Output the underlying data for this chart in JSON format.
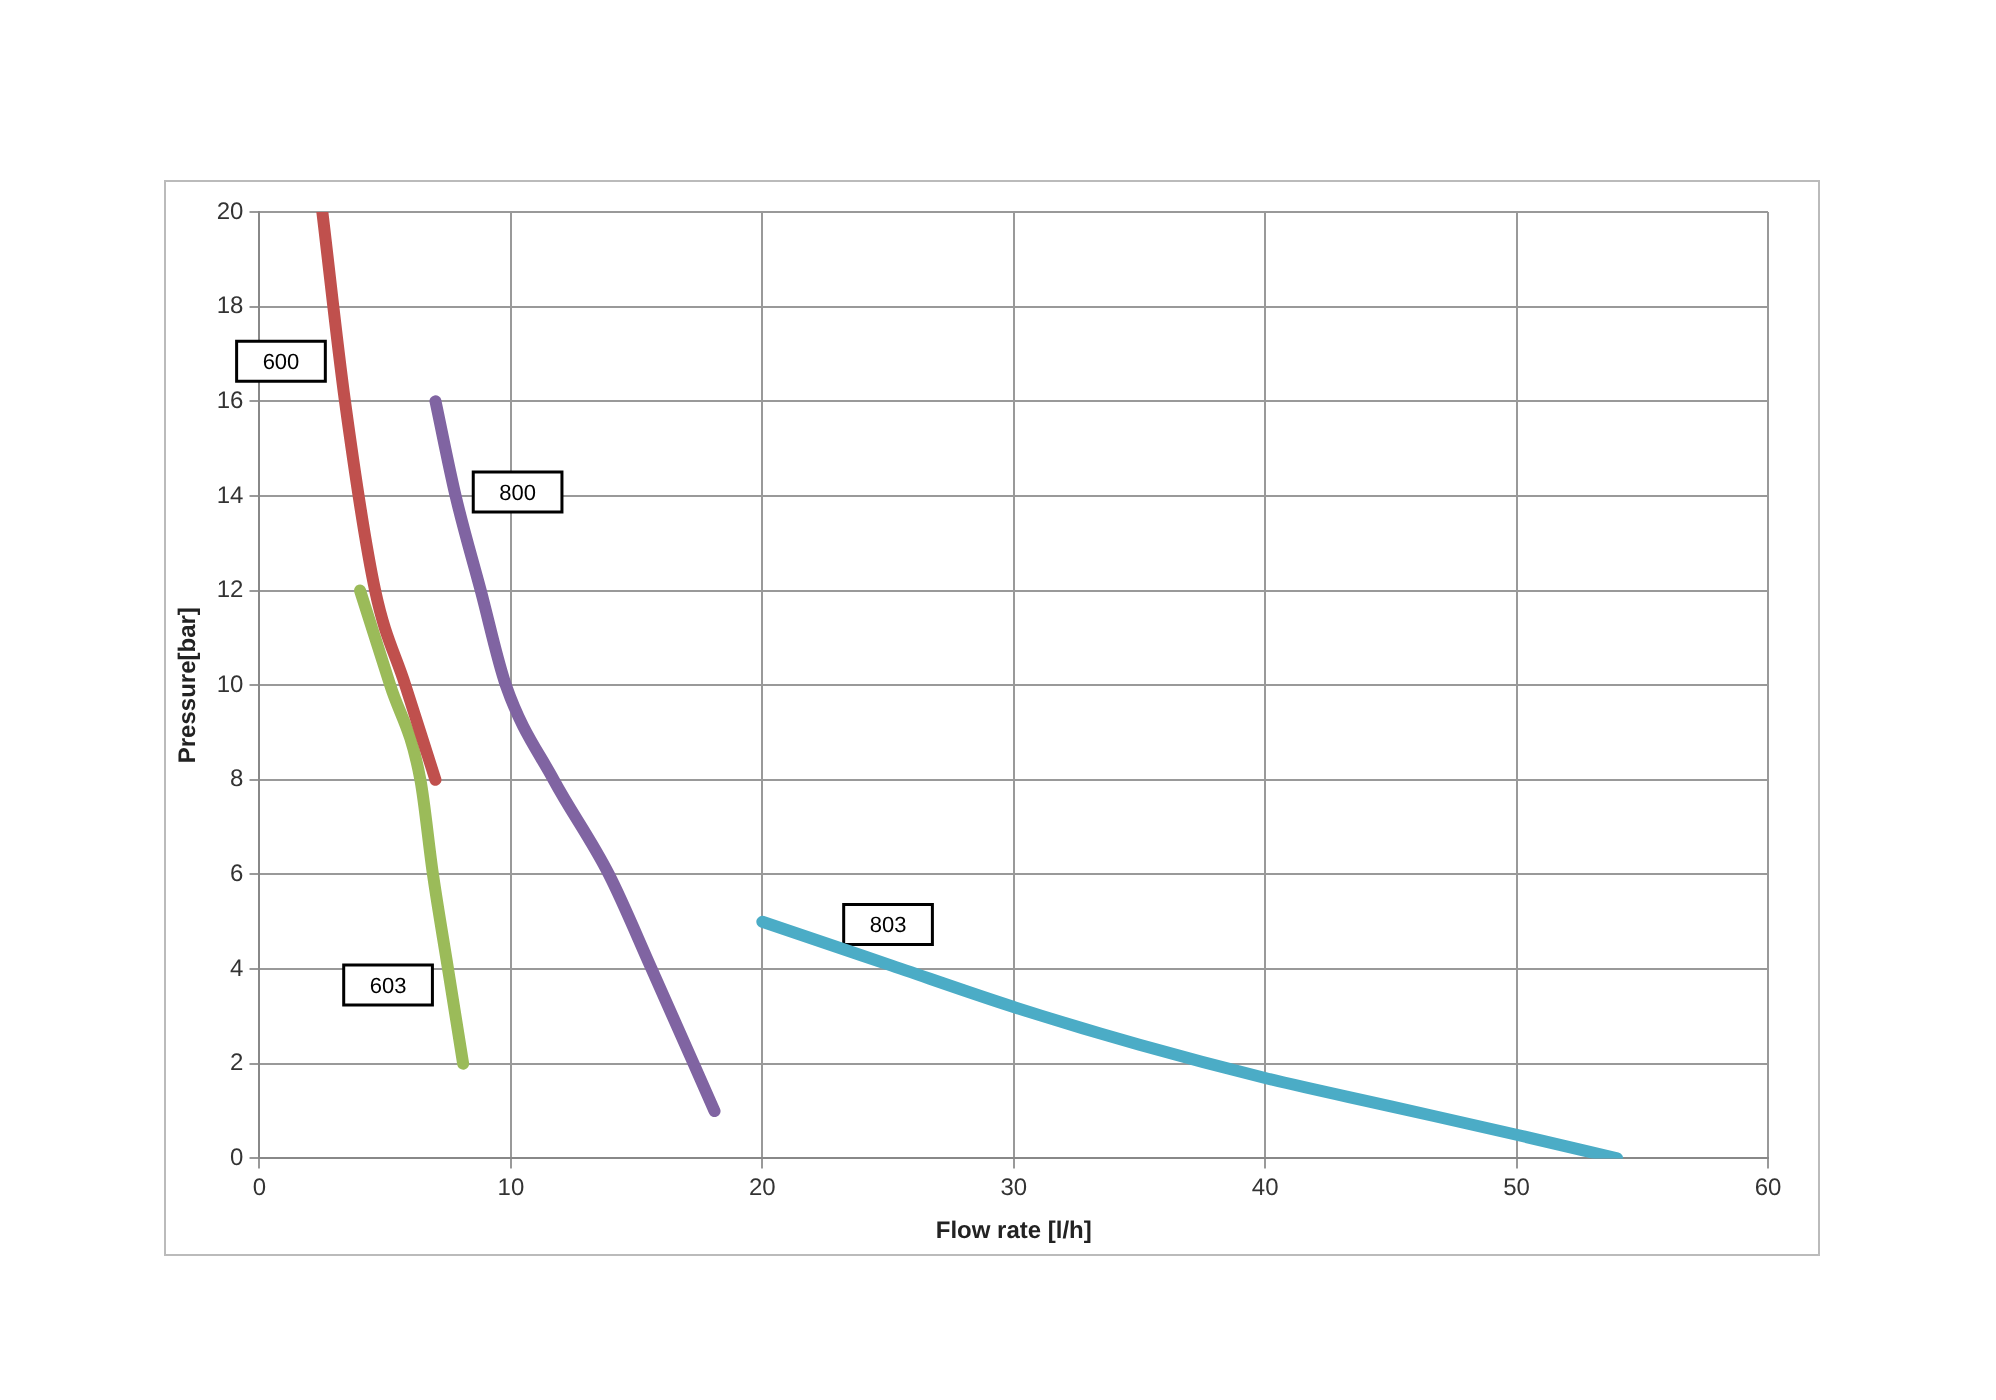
{
  "chart_data": {
    "type": "line",
    "xlabel": "Flow rate [l/h]",
    "ylabel": "Pressure[bar]",
    "xlim": [
      0,
      60
    ],
    "xticks": [
      0,
      10,
      20,
      30,
      40,
      50,
      60
    ],
    "ylim": [
      0,
      20
    ],
    "yticks": [
      0,
      2,
      4,
      6,
      8,
      10,
      12,
      14,
      16,
      18,
      20
    ],
    "grid": true,
    "legend": false,
    "marker": "none",
    "line_style": "solid",
    "series": [
      {
        "name": "600",
        "color": "#c0504d",
        "x": [
          2.5,
          3.4,
          4.6,
          5.8,
          7
        ],
        "values": [
          20,
          16,
          12,
          10,
          8
        ]
      },
      {
        "name": "800",
        "color": "#8064a2",
        "x": [
          7,
          7.8,
          8.8,
          9.8,
          11.7,
          13.9,
          15.6,
          18.1
        ],
        "values": [
          16,
          14,
          12,
          10,
          8,
          6,
          4,
          1
        ]
      },
      {
        "name": "603",
        "color": "#9bbb59",
        "x": [
          4,
          5.2,
          6.4,
          6.9,
          7.5,
          8.1
        ],
        "values": [
          12,
          10,
          8,
          6,
          4,
          2
        ]
      },
      {
        "name": "803",
        "color": "#4bacc6",
        "x": [
          20,
          25,
          30,
          35,
          40,
          45,
          50,
          54
        ],
        "values": [
          5,
          4.1,
          3.2,
          2.4,
          1.7,
          1.1,
          0.5,
          0
        ]
      }
    ]
  }
}
